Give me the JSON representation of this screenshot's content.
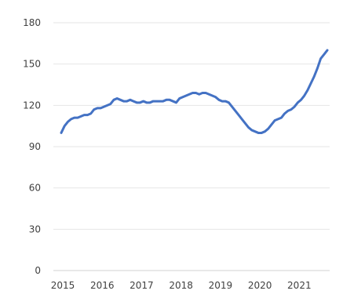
{
  "chart_data": {
    "type": "line",
    "title": "",
    "xlabel": "",
    "ylabel": "",
    "x_tick_labels": [
      "2015",
      "2016",
      "2017",
      "2018",
      "2019",
      "2020",
      "2021"
    ],
    "y_tick_labels": [
      "0",
      "30",
      "60",
      "90",
      "120",
      "150",
      "180"
    ],
    "xlim": [
      "2015-01",
      "2021-08"
    ],
    "ylim": [
      0,
      180
    ],
    "grid": true,
    "legend": "none",
    "series": [
      {
        "color": "#4472c4",
        "points": [
          [
            "2015-01",
            100
          ],
          [
            "2015-02",
            105
          ],
          [
            "2015-03",
            108
          ],
          [
            "2015-04",
            110
          ],
          [
            "2015-05",
            111
          ],
          [
            "2015-06",
            111
          ],
          [
            "2015-07",
            112
          ],
          [
            "2015-08",
            113
          ],
          [
            "2015-09",
            113
          ],
          [
            "2015-10",
            114
          ],
          [
            "2015-11",
            117
          ],
          [
            "2015-12",
            118
          ],
          [
            "2016-01",
            118
          ],
          [
            "2016-02",
            119
          ],
          [
            "2016-03",
            120
          ],
          [
            "2016-04",
            121
          ],
          [
            "2016-05",
            124
          ],
          [
            "2016-06",
            125
          ],
          [
            "2016-07",
            124
          ],
          [
            "2016-08",
            123
          ],
          [
            "2016-09",
            123
          ],
          [
            "2016-10",
            124
          ],
          [
            "2016-11",
            123
          ],
          [
            "2016-12",
            122
          ],
          [
            "2017-01",
            122
          ],
          [
            "2017-02",
            123
          ],
          [
            "2017-03",
            122
          ],
          [
            "2017-04",
            122
          ],
          [
            "2017-05",
            123
          ],
          [
            "2017-06",
            123
          ],
          [
            "2017-07",
            123
          ],
          [
            "2017-08",
            123
          ],
          [
            "2017-09",
            124
          ],
          [
            "2017-10",
            124
          ],
          [
            "2017-11",
            123
          ],
          [
            "2017-12",
            122
          ],
          [
            "2018-01",
            125
          ],
          [
            "2018-02",
            126
          ],
          [
            "2018-03",
            127
          ],
          [
            "2018-04",
            128
          ],
          [
            "2018-05",
            129
          ],
          [
            "2018-06",
            129
          ],
          [
            "2018-07",
            128
          ],
          [
            "2018-08",
            129
          ],
          [
            "2018-09",
            129
          ],
          [
            "2018-10",
            128
          ],
          [
            "2018-11",
            127
          ],
          [
            "2018-12",
            126
          ],
          [
            "2019-01",
            124
          ],
          [
            "2019-02",
            123
          ],
          [
            "2019-03",
            123
          ],
          [
            "2019-04",
            122
          ],
          [
            "2019-05",
            119
          ],
          [
            "2019-06",
            116
          ],
          [
            "2019-07",
            113
          ],
          [
            "2019-08",
            110
          ],
          [
            "2019-09",
            107
          ],
          [
            "2019-10",
            104
          ],
          [
            "2019-11",
            102
          ],
          [
            "2019-12",
            101
          ],
          [
            "2020-01",
            100
          ],
          [
            "2020-02",
            100
          ],
          [
            "2020-03",
            101
          ],
          [
            "2020-04",
            103
          ],
          [
            "2020-05",
            106
          ],
          [
            "2020-06",
            109
          ],
          [
            "2020-07",
            110
          ],
          [
            "2020-08",
            111
          ],
          [
            "2020-09",
            114
          ],
          [
            "2020-10",
            116
          ],
          [
            "2020-11",
            117
          ],
          [
            "2020-12",
            119
          ],
          [
            "2021-01",
            122
          ],
          [
            "2021-02",
            124
          ],
          [
            "2021-03",
            127
          ],
          [
            "2021-04",
            131
          ],
          [
            "2021-05",
            136
          ],
          [
            "2021-06",
            141
          ],
          [
            "2021-07",
            147
          ],
          [
            "2021-08",
            154
          ],
          [
            "2021-09",
            157
          ],
          [
            "2021-10",
            160
          ]
        ]
      }
    ]
  }
}
